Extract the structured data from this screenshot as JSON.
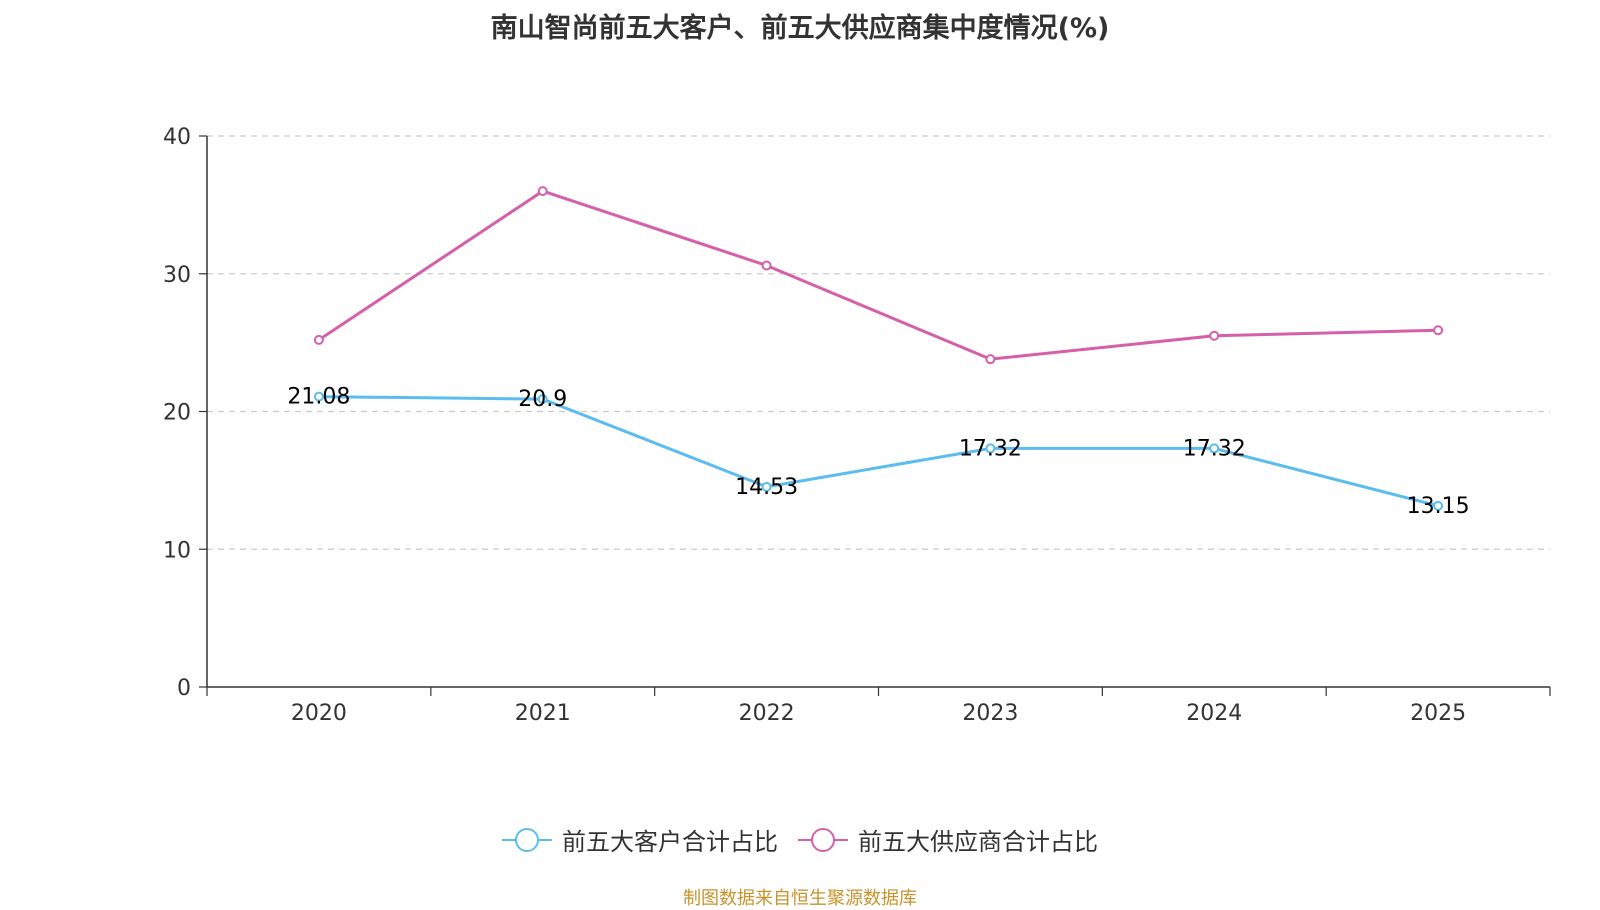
{
  "chart_data": {
    "type": "line",
    "title": "南山智尚前五大客户、前五大供应商集中度情况(%)",
    "categories": [
      "2020",
      "2021",
      "2022",
      "2023",
      "2024",
      "2025"
    ],
    "ylim": [
      0,
      40
    ],
    "yticks": [
      0,
      10,
      20,
      30,
      40
    ],
    "grid": true,
    "legend_position": "bottom-center",
    "series": [
      {
        "name": "前五大客户合计占比",
        "color": "#5bbcf0",
        "values": [
          21.08,
          20.9,
          14.53,
          17.32,
          17.32,
          13.15
        ],
        "labels": [
          "21.08",
          "20.9",
          "14.53",
          "17.32",
          "17.32",
          "13.15"
        ],
        "show_labels": true
      },
      {
        "name": "前五大供应商合计占比",
        "color": "#d65fa9",
        "values": [
          25.2,
          36.0,
          30.6,
          23.8,
          25.5,
          25.9
        ],
        "show_labels": false
      }
    ]
  },
  "source_text": "制图数据来自恒生聚源数据库",
  "colors": {
    "title": "#333333",
    "axis": "#333333",
    "grid": "#cccccc",
    "source": "#c8932a"
  }
}
